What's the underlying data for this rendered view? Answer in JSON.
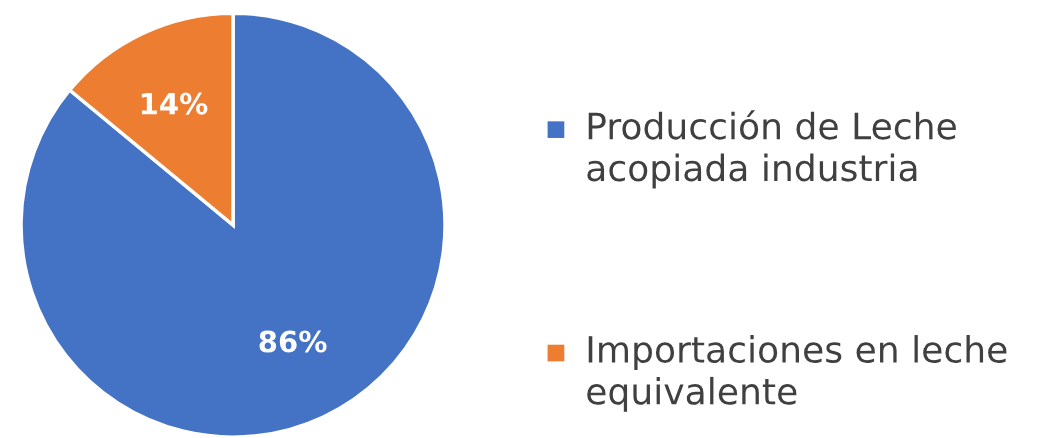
{
  "chart_data": {
    "type": "pie",
    "categories": [
      "Producción de Leche acopiada industria",
      "Importaciones en leche equivalente"
    ],
    "values": [
      86,
      14
    ],
    "colors": [
      "#4472c4",
      "#ed7d31"
    ],
    "value_labels": [
      "86%",
      "14%"
    ],
    "legend": "right"
  }
}
